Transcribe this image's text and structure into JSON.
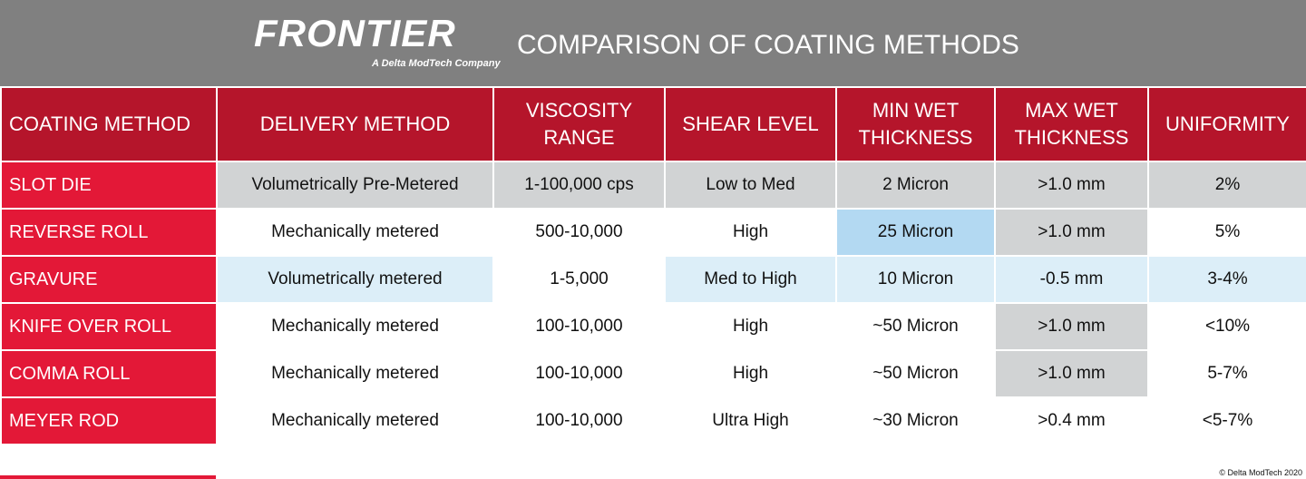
{
  "header": {
    "logo": "FRONTIER",
    "logo_subtitle": "A Delta ModTech Company",
    "title": "COMPARISON OF COATING METHODS"
  },
  "table": {
    "columns": [
      "COATING METHOD",
      "DELIVERY METHOD",
      "VISCOSITY RANGE",
      "SHEAR LEVEL",
      "MIN WET THICKNESS",
      "MAX WET THICKNESS",
      "UNIFORMITY"
    ],
    "rows": [
      [
        "SLOT DIE",
        "Volumetrically Pre-Metered",
        "1-100,000 cps",
        "Low to Med",
        "2 Micron",
        ">1.0 mm",
        "2%"
      ],
      [
        "REVERSE ROLL",
        "Mechanically metered",
        "500-10,000",
        "High",
        "25 Micron",
        ">1.0 mm",
        "5%"
      ],
      [
        "GRAVURE",
        "Volumetrically metered",
        "1-5,000",
        "Med to High",
        "10 Micron",
        "-0.5 mm",
        "3-4%"
      ],
      [
        "KNIFE OVER ROLL",
        "Mechanically metered",
        "100-10,000",
        "High",
        "~50 Micron",
        ">1.0 mm",
        "<10%"
      ],
      [
        "COMMA ROLL",
        "Mechanically metered",
        "100-10,000",
        "High",
        "~50 Micron",
        ">1.0 mm",
        "5-7%"
      ],
      [
        "MEYER ROD",
        "Mechanically metered",
        "100-10,000",
        "Ultra High",
        "~30 Micron",
        ">0.4 mm",
        "<5-7%"
      ]
    ]
  },
  "footer": {
    "copyright": "© Delta ModTech 2020"
  }
}
